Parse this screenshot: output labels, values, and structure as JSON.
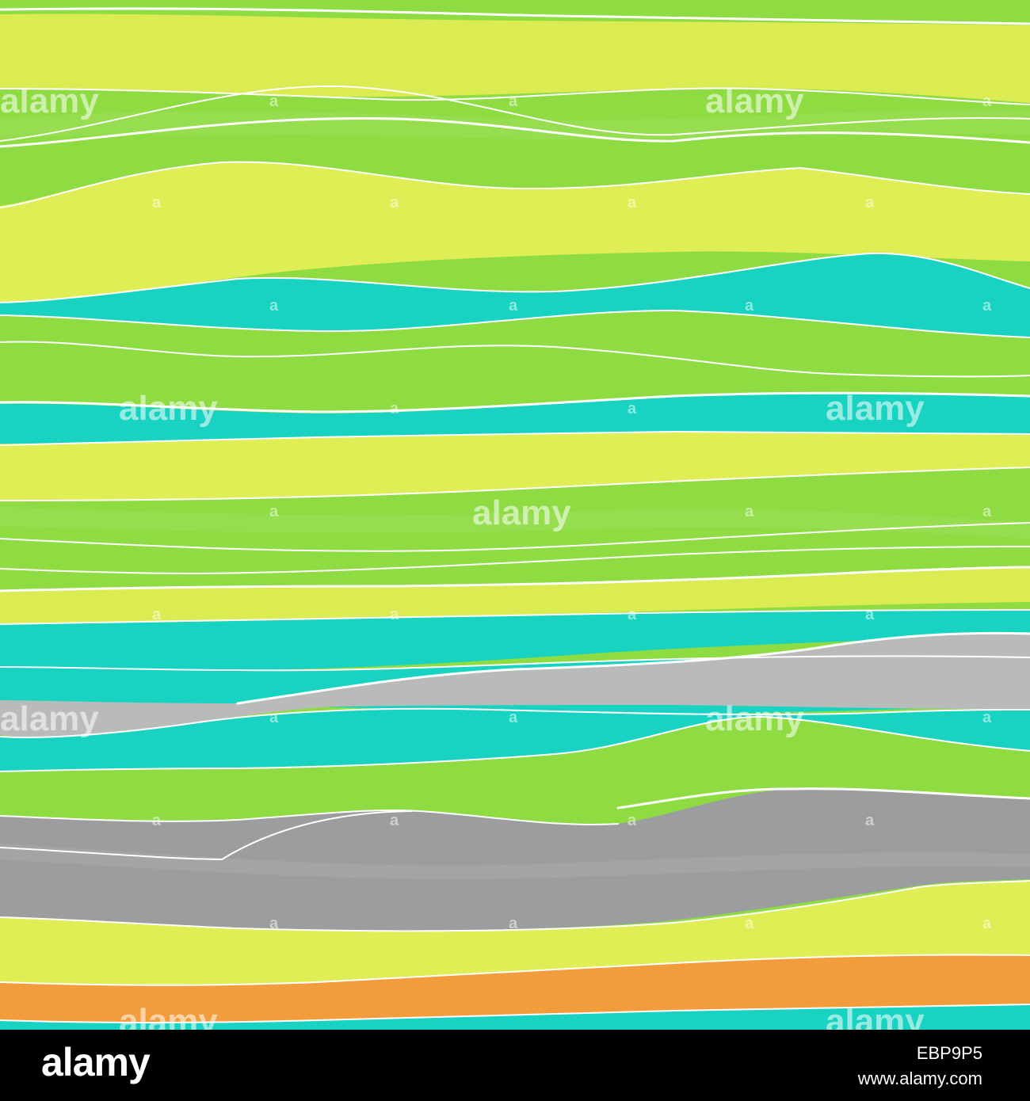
{
  "watermark": {
    "text": "alamy",
    "small": "a"
  },
  "footer": {
    "logo": "alamy",
    "image_id": "EBP9P5",
    "url": "www.alamy.com"
  },
  "palette": {
    "lime": "#8edc42",
    "yellow_green": "#dbeb52",
    "turquoise": "#19d3c2",
    "light_gray": "#b9bbbb",
    "mid_gray": "#9c9d9e",
    "orange": "#f29c3b",
    "line": "#ffffff"
  }
}
